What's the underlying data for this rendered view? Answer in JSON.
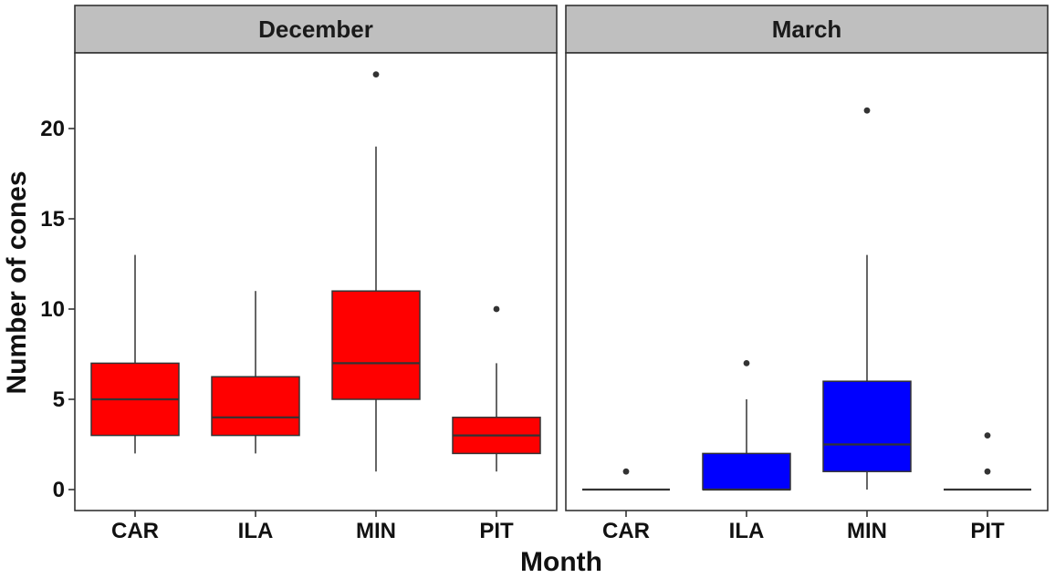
{
  "chart_data": {
    "type": "boxplot",
    "xlabel": "Month",
    "ylabel": "Number of cones",
    "ylim": [
      -1.2,
      24
    ],
    "y_ticks": [
      0,
      5,
      10,
      15,
      20
    ],
    "categories": [
      "CAR",
      "ILA",
      "MIN",
      "PIT"
    ],
    "grid": false,
    "facets": [
      {
        "name": "December",
        "fill": "#FF0000",
        "boxes": [
          {
            "category": "CAR",
            "whisker_low": 2,
            "q1": 3,
            "median": 5,
            "q3": 7,
            "whisker_high": 13,
            "outliers": []
          },
          {
            "category": "ILA",
            "whisker_low": 2,
            "q1": 3,
            "median": 4,
            "q3": 6.25,
            "whisker_high": 11,
            "outliers": []
          },
          {
            "category": "MIN",
            "whisker_low": 1,
            "q1": 5,
            "median": 7,
            "q3": 11,
            "whisker_high": 19,
            "outliers": [
              23
            ]
          },
          {
            "category": "PIT",
            "whisker_low": 1,
            "q1": 2,
            "median": 3,
            "q3": 4,
            "whisker_high": 7,
            "outliers": [
              10
            ]
          }
        ]
      },
      {
        "name": "March",
        "fill": "#0000FF",
        "boxes": [
          {
            "category": "CAR",
            "whisker_low": 0,
            "q1": 0,
            "median": 0,
            "q3": 0,
            "whisker_high": 0,
            "outliers": [
              1
            ]
          },
          {
            "category": "ILA",
            "whisker_low": 0,
            "q1": 0,
            "median": 0,
            "q3": 2,
            "whisker_high": 5,
            "outliers": [
              7
            ]
          },
          {
            "category": "MIN",
            "whisker_low": 0,
            "q1": 1,
            "median": 2.5,
            "q3": 6,
            "whisker_high": 13,
            "outliers": [
              21
            ]
          },
          {
            "category": "PIT",
            "whisker_low": 0,
            "q1": 0,
            "median": 0,
            "q3": 0,
            "whisker_high": 0,
            "outliers": [
              1,
              3
            ]
          }
        ]
      }
    ]
  }
}
